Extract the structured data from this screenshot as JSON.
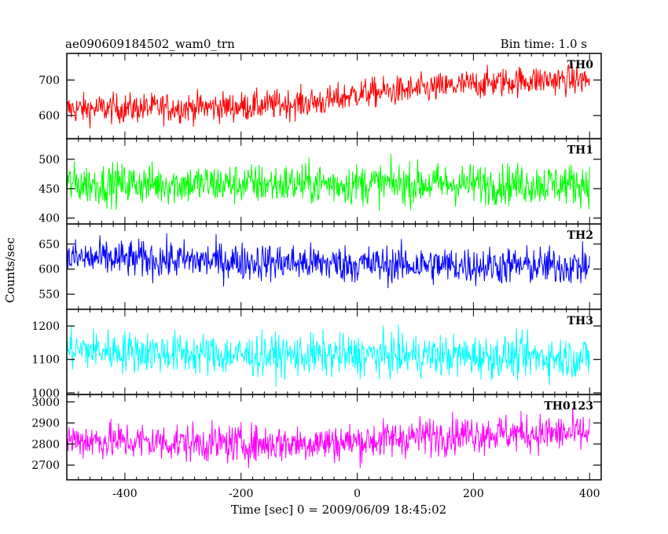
{
  "chart_data": {
    "type": "line",
    "title": "ae090609184502_wam0_trn",
    "bin_time_label": "Bin time: 1.0 s",
    "xlabel": "Time [sec] 0 = 2009/06/09 18:45:02",
    "ylabel": "Counts/sec",
    "xlim": [
      -500,
      420
    ],
    "x_ticks": [
      -400,
      -200,
      0,
      200,
      400
    ],
    "grid": false,
    "panels": [
      {
        "name": "TH0",
        "color": "#ff0000",
        "ylim": [
          535,
          775
        ],
        "y_ticks": [
          600,
          700
        ],
        "trend": [
          [
            -500,
            618
          ],
          [
            -200,
            625
          ],
          [
            -50,
            640
          ],
          [
            0,
            662
          ],
          [
            100,
            672
          ],
          [
            200,
            688
          ],
          [
            300,
            700
          ],
          [
            400,
            700
          ]
        ],
        "noise": 30
      },
      {
        "name": "TH1",
        "color": "#00ff00",
        "ylim": [
          390,
          535
        ],
        "y_ticks": [
          400,
          450,
          500
        ],
        "trend": [
          [
            -500,
            458
          ],
          [
            400,
            458
          ]
        ],
        "noise": 25
      },
      {
        "name": "TH2",
        "color": "#0000ff",
        "ylim": [
          520,
          690
        ],
        "y_ticks": [
          550,
          600,
          650
        ],
        "trend": [
          [
            -500,
            622
          ],
          [
            -300,
            618
          ],
          [
            0,
            610
          ],
          [
            200,
            607
          ],
          [
            400,
            606
          ]
        ],
        "noise": 27
      },
      {
        "name": "TH3",
        "color": "#00ffff",
        "ylim": [
          995,
          1250
        ],
        "y_ticks": [
          1000,
          1100,
          1200
        ],
        "trend": [
          [
            -500,
            1130
          ],
          [
            -200,
            1112
          ],
          [
            0,
            1112
          ],
          [
            200,
            1110
          ],
          [
            400,
            1105
          ]
        ],
        "noise": 45
      },
      {
        "name": "TH0123",
        "color": "#ff00ff",
        "ylim": [
          2630,
          3035
        ],
        "y_ticks": [
          2700,
          2800,
          2900,
          3000
        ],
        "trend": [
          [
            -500,
            2820
          ],
          [
            -200,
            2800
          ],
          [
            0,
            2810
          ],
          [
            100,
            2835
          ],
          [
            200,
            2850
          ],
          [
            400,
            2850
          ]
        ],
        "noise": 65
      }
    ]
  }
}
